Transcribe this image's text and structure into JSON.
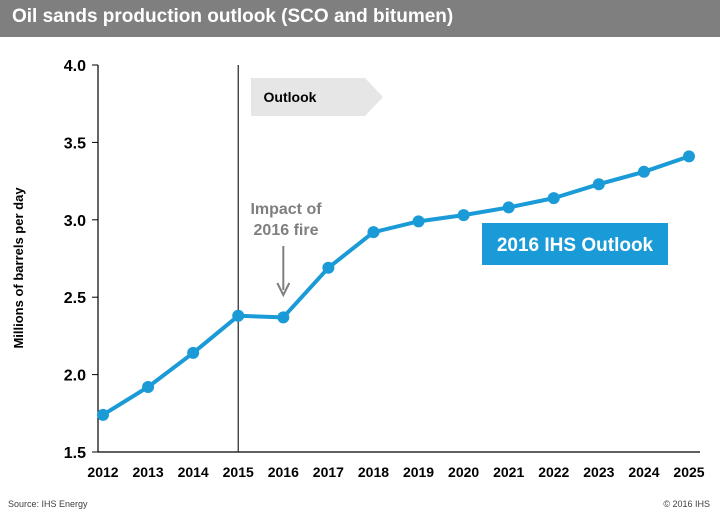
{
  "title": "Oil sands production outlook (SCO and bitumen)",
  "colors": {
    "title_bar": "#7f7f7f",
    "series": "#1a9ad6",
    "annotation": "#7f7f7f",
    "outlook_arrow": "#e6e6e6"
  },
  "chart_data": {
    "type": "line",
    "title": "Oil sands production outlook (SCO and bitumen)",
    "xlabel": "",
    "ylabel": "Millions of barrels per day",
    "ylim": [
      1.5,
      4.0
    ],
    "yticks": [
      "1.5",
      "2.0",
      "2.5",
      "3.0",
      "3.5",
      "4.0"
    ],
    "ytick_values": [
      1.5,
      2.0,
      2.5,
      3.0,
      3.5,
      4.0
    ],
    "categories": [
      "2012",
      "2013",
      "2014",
      "2015",
      "2016",
      "2017",
      "2018",
      "2019",
      "2020",
      "2021",
      "2022",
      "2023",
      "2024",
      "2025"
    ],
    "series": [
      {
        "name": "2016 IHS Outlook",
        "values": [
          1.74,
          1.92,
          2.14,
          2.38,
          2.37,
          2.69,
          2.92,
          2.99,
          3.03,
          3.08,
          3.14,
          3.23,
          3.31,
          3.41
        ]
      }
    ],
    "divider_category": "2015",
    "annotations": {
      "outlook_label": "Outlook",
      "fire_label_line1": "Impact of",
      "fire_label_line2": "2016 fire",
      "fire_category": "2016",
      "series_label": "2016 IHS Outlook"
    }
  },
  "footer": {
    "source": "Source: IHS Energy",
    "copyright": "© 2016 IHS"
  }
}
